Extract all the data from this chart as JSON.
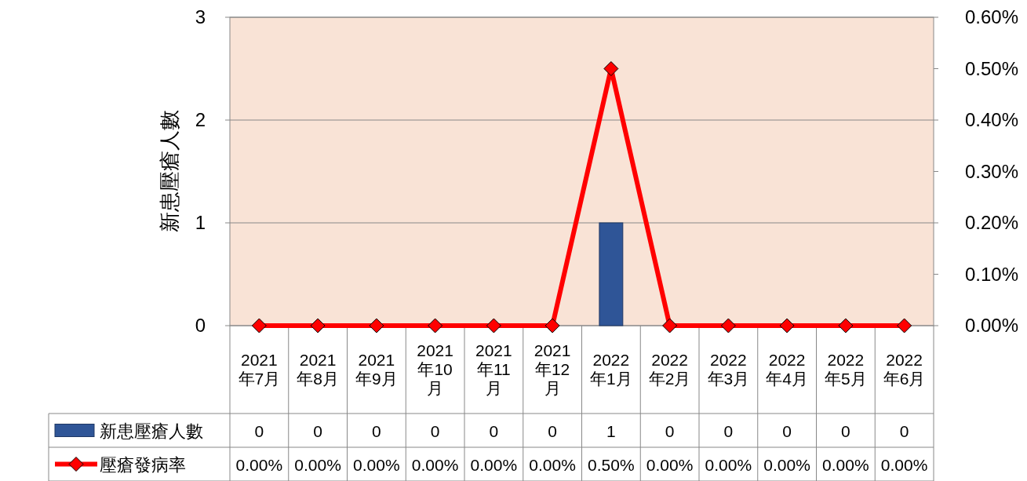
{
  "chart_data": {
    "type": "bar",
    "categories": [
      "2021年7月",
      "2021年8月",
      "2021年9月",
      "2021年10月",
      "2021年11月",
      "2021年12月",
      "2022年1月",
      "2022年2月",
      "2022年3月",
      "2022年4月",
      "2022年5月",
      "2022年6月"
    ],
    "series": [
      {
        "name": "新患壓瘡人數",
        "color": "#2f5597",
        "values": [
          0,
          0,
          0,
          0,
          0,
          0,
          1,
          0,
          0,
          0,
          0,
          0
        ],
        "value_labels": [
          "0",
          "0",
          "0",
          "0",
          "0",
          "0",
          "1",
          "0",
          "0",
          "0",
          "0",
          "0"
        ]
      },
      {
        "name": "壓瘡發病率",
        "type": "line",
        "axis": "y2",
        "color": "#ff0000",
        "marker": "diamond",
        "values": [
          0,
          0,
          0,
          0,
          0,
          0,
          0.5,
          0,
          0,
          0,
          0,
          0
        ],
        "value_labels": [
          "0.00%",
          "0.00%",
          "0.00%",
          "0.00%",
          "0.00%",
          "0.00%",
          "0.50%",
          "0.00%",
          "0.00%",
          "0.00%",
          "0.00%",
          "0.00%"
        ]
      }
    ],
    "ylabel": "新患壓瘡人數",
    "ylim": [
      0,
      3
    ],
    "yticks": [
      0,
      1,
      2,
      3
    ],
    "y2lim": [
      0,
      0.6
    ],
    "y2ticks": [
      {
        "value": 0,
        "label": "0.00%"
      },
      {
        "value": 0.1,
        "label": "0.10%"
      },
      {
        "value": 0.2,
        "label": "0.20%"
      },
      {
        "value": 0.3,
        "label": "0.30%"
      },
      {
        "value": 0.4,
        "label": "0.40%"
      },
      {
        "value": 0.5,
        "label": "0.50%"
      },
      {
        "value": 0.6,
        "label": "0.60%"
      }
    ],
    "grid": "y",
    "legend": "bottom left"
  }
}
